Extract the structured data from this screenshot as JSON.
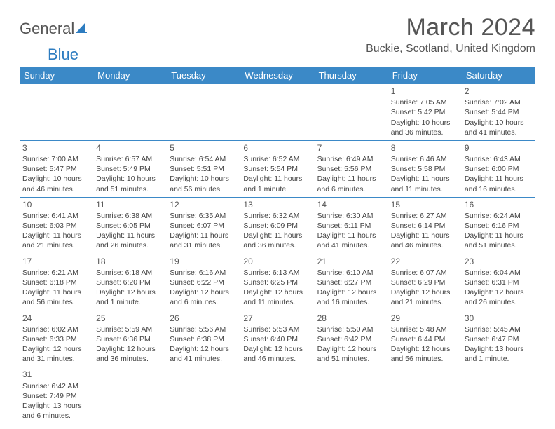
{
  "logo": {
    "text1": "General",
    "text2": "Blue"
  },
  "title": "March 2024",
  "location": "Buckie, Scotland, United Kingdom",
  "colors": {
    "header_bg": "#3b89c7",
    "header_text": "#ffffff",
    "border": "#3b89c7",
    "text": "#444444",
    "title": "#555555"
  },
  "weekdays": [
    "Sunday",
    "Monday",
    "Tuesday",
    "Wednesday",
    "Thursday",
    "Friday",
    "Saturday"
  ],
  "weeks": [
    [
      null,
      null,
      null,
      null,
      null,
      {
        "n": "1",
        "sr": "Sunrise: 7:05 AM",
        "ss": "Sunset: 5:42 PM",
        "dl": "Daylight: 10 hours and 36 minutes."
      },
      {
        "n": "2",
        "sr": "Sunrise: 7:02 AM",
        "ss": "Sunset: 5:44 PM",
        "dl": "Daylight: 10 hours and 41 minutes."
      }
    ],
    [
      {
        "n": "3",
        "sr": "Sunrise: 7:00 AM",
        "ss": "Sunset: 5:47 PM",
        "dl": "Daylight: 10 hours and 46 minutes."
      },
      {
        "n": "4",
        "sr": "Sunrise: 6:57 AM",
        "ss": "Sunset: 5:49 PM",
        "dl": "Daylight: 10 hours and 51 minutes."
      },
      {
        "n": "5",
        "sr": "Sunrise: 6:54 AM",
        "ss": "Sunset: 5:51 PM",
        "dl": "Daylight: 10 hours and 56 minutes."
      },
      {
        "n": "6",
        "sr": "Sunrise: 6:52 AM",
        "ss": "Sunset: 5:54 PM",
        "dl": "Daylight: 11 hours and 1 minute."
      },
      {
        "n": "7",
        "sr": "Sunrise: 6:49 AM",
        "ss": "Sunset: 5:56 PM",
        "dl": "Daylight: 11 hours and 6 minutes."
      },
      {
        "n": "8",
        "sr": "Sunrise: 6:46 AM",
        "ss": "Sunset: 5:58 PM",
        "dl": "Daylight: 11 hours and 11 minutes."
      },
      {
        "n": "9",
        "sr": "Sunrise: 6:43 AM",
        "ss": "Sunset: 6:00 PM",
        "dl": "Daylight: 11 hours and 16 minutes."
      }
    ],
    [
      {
        "n": "10",
        "sr": "Sunrise: 6:41 AM",
        "ss": "Sunset: 6:03 PM",
        "dl": "Daylight: 11 hours and 21 minutes."
      },
      {
        "n": "11",
        "sr": "Sunrise: 6:38 AM",
        "ss": "Sunset: 6:05 PM",
        "dl": "Daylight: 11 hours and 26 minutes."
      },
      {
        "n": "12",
        "sr": "Sunrise: 6:35 AM",
        "ss": "Sunset: 6:07 PM",
        "dl": "Daylight: 11 hours and 31 minutes."
      },
      {
        "n": "13",
        "sr": "Sunrise: 6:32 AM",
        "ss": "Sunset: 6:09 PM",
        "dl": "Daylight: 11 hours and 36 minutes."
      },
      {
        "n": "14",
        "sr": "Sunrise: 6:30 AM",
        "ss": "Sunset: 6:11 PM",
        "dl": "Daylight: 11 hours and 41 minutes."
      },
      {
        "n": "15",
        "sr": "Sunrise: 6:27 AM",
        "ss": "Sunset: 6:14 PM",
        "dl": "Daylight: 11 hours and 46 minutes."
      },
      {
        "n": "16",
        "sr": "Sunrise: 6:24 AM",
        "ss": "Sunset: 6:16 PM",
        "dl": "Daylight: 11 hours and 51 minutes."
      }
    ],
    [
      {
        "n": "17",
        "sr": "Sunrise: 6:21 AM",
        "ss": "Sunset: 6:18 PM",
        "dl": "Daylight: 11 hours and 56 minutes."
      },
      {
        "n": "18",
        "sr": "Sunrise: 6:18 AM",
        "ss": "Sunset: 6:20 PM",
        "dl": "Daylight: 12 hours and 1 minute."
      },
      {
        "n": "19",
        "sr": "Sunrise: 6:16 AM",
        "ss": "Sunset: 6:22 PM",
        "dl": "Daylight: 12 hours and 6 minutes."
      },
      {
        "n": "20",
        "sr": "Sunrise: 6:13 AM",
        "ss": "Sunset: 6:25 PM",
        "dl": "Daylight: 12 hours and 11 minutes."
      },
      {
        "n": "21",
        "sr": "Sunrise: 6:10 AM",
        "ss": "Sunset: 6:27 PM",
        "dl": "Daylight: 12 hours and 16 minutes."
      },
      {
        "n": "22",
        "sr": "Sunrise: 6:07 AM",
        "ss": "Sunset: 6:29 PM",
        "dl": "Daylight: 12 hours and 21 minutes."
      },
      {
        "n": "23",
        "sr": "Sunrise: 6:04 AM",
        "ss": "Sunset: 6:31 PM",
        "dl": "Daylight: 12 hours and 26 minutes."
      }
    ],
    [
      {
        "n": "24",
        "sr": "Sunrise: 6:02 AM",
        "ss": "Sunset: 6:33 PM",
        "dl": "Daylight: 12 hours and 31 minutes."
      },
      {
        "n": "25",
        "sr": "Sunrise: 5:59 AM",
        "ss": "Sunset: 6:36 PM",
        "dl": "Daylight: 12 hours and 36 minutes."
      },
      {
        "n": "26",
        "sr": "Sunrise: 5:56 AM",
        "ss": "Sunset: 6:38 PM",
        "dl": "Daylight: 12 hours and 41 minutes."
      },
      {
        "n": "27",
        "sr": "Sunrise: 5:53 AM",
        "ss": "Sunset: 6:40 PM",
        "dl": "Daylight: 12 hours and 46 minutes."
      },
      {
        "n": "28",
        "sr": "Sunrise: 5:50 AM",
        "ss": "Sunset: 6:42 PM",
        "dl": "Daylight: 12 hours and 51 minutes."
      },
      {
        "n": "29",
        "sr": "Sunrise: 5:48 AM",
        "ss": "Sunset: 6:44 PM",
        "dl": "Daylight: 12 hours and 56 minutes."
      },
      {
        "n": "30",
        "sr": "Sunrise: 5:45 AM",
        "ss": "Sunset: 6:47 PM",
        "dl": "Daylight: 13 hours and 1 minute."
      }
    ],
    [
      {
        "n": "31",
        "sr": "Sunrise: 6:42 AM",
        "ss": "Sunset: 7:49 PM",
        "dl": "Daylight: 13 hours and 6 minutes."
      },
      null,
      null,
      null,
      null,
      null,
      null
    ]
  ]
}
